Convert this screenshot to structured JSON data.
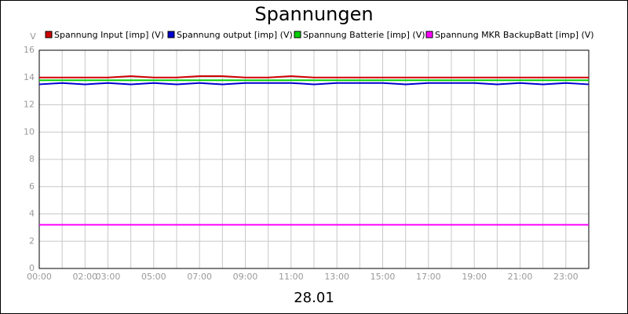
{
  "chart_data": {
    "type": "line",
    "title": "Spannungen",
    "ylabel": "V",
    "footer": "28.01",
    "x": [
      0,
      1,
      2,
      3,
      4,
      5,
      6,
      7,
      8,
      9,
      10,
      11,
      12,
      13,
      14,
      15,
      16,
      17,
      18,
      19,
      20,
      21,
      22,
      23,
      24
    ],
    "series": [
      {
        "name": "Spannung Input [imp] (V)",
        "color": "#d00000",
        "values": [
          14.0,
          14.0,
          14.0,
          14.0,
          14.1,
          14.0,
          14.0,
          14.1,
          14.1,
          14.0,
          14.0,
          14.1,
          14.0,
          14.0,
          14.0,
          14.0,
          14.0,
          14.0,
          14.0,
          14.0,
          14.0,
          14.0,
          14.0,
          14.0,
          14.0
        ]
      },
      {
        "name": "Spannung output [imp] (V)",
        "color": "#0000d0",
        "values": [
          13.5,
          13.6,
          13.5,
          13.6,
          13.5,
          13.6,
          13.5,
          13.6,
          13.5,
          13.6,
          13.6,
          13.6,
          13.5,
          13.6,
          13.6,
          13.6,
          13.5,
          13.6,
          13.6,
          13.6,
          13.5,
          13.6,
          13.5,
          13.6,
          13.5
        ]
      },
      {
        "name": "Spannung Batterie [imp] (V)",
        "color": "#00d000",
        "values": [
          13.8,
          13.8,
          13.8,
          13.8,
          13.8,
          13.8,
          13.8,
          13.8,
          13.8,
          13.8,
          13.8,
          13.8,
          13.8,
          13.8,
          13.8,
          13.8,
          13.8,
          13.8,
          13.8,
          13.8,
          13.8,
          13.8,
          13.8,
          13.8,
          13.8
        ]
      },
      {
        "name": "Spannung MKR BackupBatt [imp] (V)",
        "color": "#ff00ff",
        "values": [
          3.2,
          3.2,
          3.2,
          3.2,
          3.2,
          3.2,
          3.2,
          3.2,
          3.2,
          3.2,
          3.2,
          3.2,
          3.2,
          3.2,
          3.2,
          3.2,
          3.2,
          3.2,
          3.2,
          3.2,
          3.2,
          3.2,
          3.2,
          3.2,
          3.2
        ]
      }
    ],
    "xlim": [
      0,
      24
    ],
    "xticks": [
      {
        "value": 0,
        "label": "00:00"
      },
      {
        "value": 1,
        "label": null
      },
      {
        "value": 2,
        "label": "02:00"
      },
      {
        "value": 3,
        "label": "03:00"
      },
      {
        "value": 4,
        "label": null
      },
      {
        "value": 5,
        "label": "05:00"
      },
      {
        "value": 6,
        "label": null
      },
      {
        "value": 7,
        "label": "07:00"
      },
      {
        "value": 8,
        "label": null
      },
      {
        "value": 9,
        "label": "09:00"
      },
      {
        "value": 10,
        "label": null
      },
      {
        "value": 11,
        "label": "11:00"
      },
      {
        "value": 12,
        "label": null
      },
      {
        "value": 13,
        "label": "13:00"
      },
      {
        "value": 14,
        "label": null
      },
      {
        "value": 15,
        "label": "15:00"
      },
      {
        "value": 16,
        "label": null
      },
      {
        "value": 17,
        "label": "17:00"
      },
      {
        "value": 18,
        "label": null
      },
      {
        "value": 19,
        "label": "19:00"
      },
      {
        "value": 20,
        "label": null
      },
      {
        "value": 21,
        "label": "21:00"
      },
      {
        "value": 22,
        "label": null
      },
      {
        "value": 23,
        "label": "23:00"
      },
      {
        "value": 24,
        "label": null
      }
    ],
    "ylim": [
      0,
      16
    ],
    "yticks": [
      0,
      2,
      4,
      6,
      8,
      10,
      12,
      14,
      16
    ],
    "grid": true
  }
}
